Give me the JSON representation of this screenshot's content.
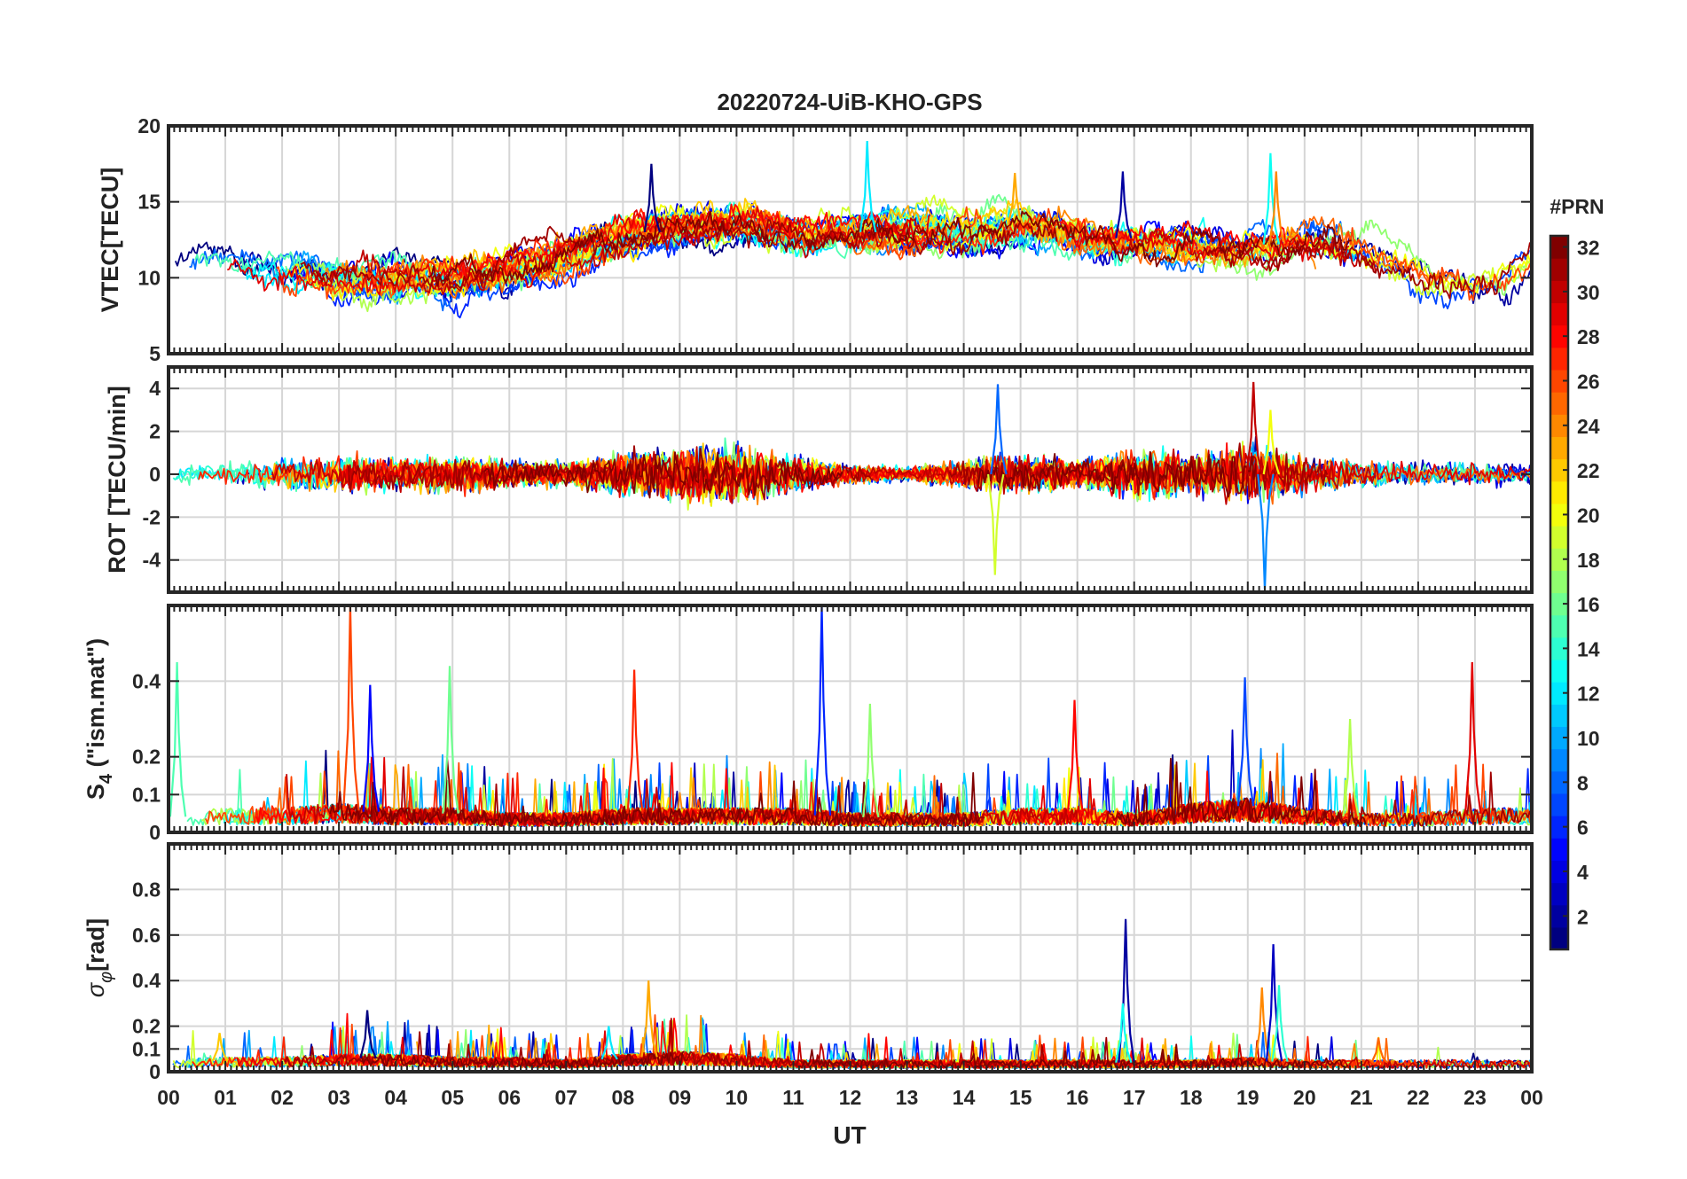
{
  "chart_data": {
    "type": "line",
    "title": "20220724-UiB-KHO-GPS",
    "xlabel": "UT",
    "x_ticks": [
      "00",
      "01",
      "02",
      "03",
      "04",
      "05",
      "06",
      "07",
      "08",
      "09",
      "10",
      "11",
      "12",
      "13",
      "14",
      "15",
      "16",
      "17",
      "18",
      "19",
      "20",
      "21",
      "22",
      "23",
      "00"
    ],
    "xlim_hours": [
      0,
      24
    ],
    "grid": true,
    "colorbar": {
      "title": "#PRN",
      "range": [
        1,
        32
      ],
      "ticks": [
        "2",
        "4",
        "6",
        "8",
        "10",
        "12",
        "14",
        "16",
        "18",
        "20",
        "22",
        "24",
        "26",
        "28",
        "30",
        "32"
      ],
      "colormap": "jet",
      "placement": "right"
    },
    "panels": [
      {
        "name": "vtec",
        "ylabel": "VTEC[TECU]",
        "ylim": [
          5,
          20
        ],
        "yticks": [
          "5",
          "10",
          "15",
          "20"
        ],
        "baseline": [
          11.0,
          11.0,
          10.5,
          10.0,
          10.0,
          10.0,
          10.5,
          11.5,
          12.5,
          13.5,
          13.5,
          13.0,
          13.0,
          13.0,
          13.0,
          13.5,
          13.0,
          12.5,
          12.0,
          12.0,
          12.5,
          11.5,
          10.0,
          9.5,
          10.5
        ],
        "spread": 1.5,
        "peaks": [
          [
            8.5,
            17.5
          ],
          [
            12.3,
            19.0
          ],
          [
            14.9,
            16.9
          ],
          [
            16.8,
            17.0
          ],
          [
            19.4,
            18.2
          ],
          [
            19.5,
            17.0
          ]
        ]
      },
      {
        "name": "rot",
        "ylabel": "ROT [TECU/min]",
        "ylim": [
          -5.5,
          5.0
        ],
        "yticks": [
          "-4",
          "-2",
          "0",
          "2",
          "4"
        ],
        "activity": [
          0.5,
          0.5,
          0.7,
          0.8,
          0.7,
          0.8,
          0.6,
          0.5,
          0.9,
          1.2,
          1.3,
          0.8,
          0.4,
          0.3,
          0.6,
          0.9,
          0.6,
          1.0,
          0.9,
          1.3,
          0.8,
          0.6,
          0.5,
          0.5,
          0.5
        ],
        "peaks": [
          [
            14.6,
            4.2
          ],
          [
            14.55,
            -4.7
          ],
          [
            19.1,
            4.3
          ],
          [
            19.3,
            -5.4
          ],
          [
            19.4,
            3.0
          ]
        ]
      },
      {
        "name": "s4",
        "ylabel": "S4 (\"ism.mat\")",
        "ylim": [
          0,
          0.6
        ],
        "yticks": [
          "0",
          "0.1",
          "0.2",
          "0.4"
        ],
        "baseline": [
          0.04,
          0.05,
          0.05,
          0.06,
          0.05,
          0.05,
          0.04,
          0.04,
          0.05,
          0.05,
          0.05,
          0.05,
          0.04,
          0.04,
          0.04,
          0.05,
          0.05,
          0.04,
          0.06,
          0.07,
          0.05,
          0.04,
          0.04,
          0.05,
          0.05
        ],
        "peaks": [
          [
            0.15,
            0.45
          ],
          [
            3.2,
            0.6
          ],
          [
            3.55,
            0.39
          ],
          [
            4.95,
            0.44
          ],
          [
            8.2,
            0.43
          ],
          [
            11.5,
            0.6
          ],
          [
            12.35,
            0.34
          ],
          [
            15.95,
            0.35
          ],
          [
            18.95,
            0.41
          ],
          [
            20.8,
            0.3
          ],
          [
            22.95,
            0.45
          ]
        ]
      },
      {
        "name": "sigma_phi",
        "ylabel": "σφ[rad]",
        "ylim": [
          0,
          1.0
        ],
        "yticks": [
          "0",
          "0.1",
          "0.2",
          "0.4",
          "0.6",
          "0.8"
        ],
        "baseline": [
          0.04,
          0.05,
          0.05,
          0.06,
          0.06,
          0.05,
          0.05,
          0.04,
          0.06,
          0.07,
          0.06,
          0.04,
          0.04,
          0.04,
          0.04,
          0.04,
          0.04,
          0.04,
          0.04,
          0.05,
          0.04,
          0.04,
          0.04,
          0.04,
          0.04
        ],
        "peaks": [
          [
            0.9,
            0.17
          ],
          [
            3.5,
            0.27
          ],
          [
            7.75,
            0.2
          ],
          [
            8.45,
            0.4
          ],
          [
            16.85,
            0.67
          ],
          [
            16.8,
            0.3
          ],
          [
            19.25,
            0.37
          ],
          [
            19.45,
            0.56
          ],
          [
            19.55,
            0.38
          ],
          [
            21.3,
            0.15
          ]
        ]
      }
    ],
    "series_prn": [
      1,
      2,
      3,
      4,
      5,
      6,
      7,
      8,
      9,
      10,
      11,
      12,
      13,
      14,
      15,
      16,
      17,
      18,
      19,
      20,
      21,
      22,
      23,
      24,
      25,
      26,
      27,
      28,
      29,
      30,
      31,
      32
    ]
  }
}
